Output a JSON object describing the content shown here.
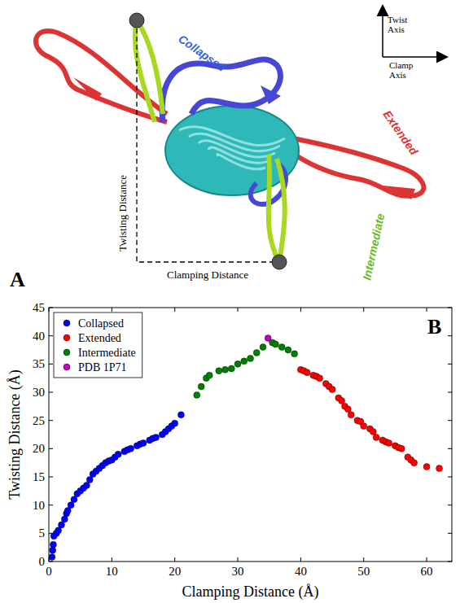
{
  "diagram": {
    "panel_label": "A",
    "labels": {
      "collapsed": "Collapsed",
      "extended": "Extended",
      "intermediate": "Intermediate",
      "twisting": "Twisting Distance",
      "clamping": "Clamping Distance"
    },
    "axes_key": {
      "twist": "Twist Axis",
      "clamp": "Clamp Axis"
    }
  },
  "chart_data": {
    "type": "scatter",
    "annotations": [
      "B"
    ],
    "x_label": "Clamping Distance (Å)",
    "y_label": "Twisting Distance (Å)",
    "xlim": [
      0,
      64
    ],
    "ylim": [
      0,
      45
    ],
    "xticks": [
      0,
      10,
      20,
      30,
      40,
      50,
      60
    ],
    "yticks": [
      0,
      5,
      10,
      15,
      20,
      25,
      30,
      35,
      40,
      45
    ],
    "legend": "upper left",
    "marker": "circle",
    "series": [
      {
        "name": "Collapsed",
        "color": "#0000ff",
        "x": [
          0.5,
          0.6,
          0.7,
          0.8,
          1.2,
          1.5,
          2,
          2.5,
          2.8,
          3,
          3.5,
          4,
          4.5,
          5,
          5.5,
          6,
          6.5,
          7,
          7.5,
          8,
          8.5,
          9,
          9.5,
          10,
          10.5,
          11,
          12,
          12.5,
          13,
          14,
          14.5,
          15,
          16,
          16.5,
          17,
          18,
          18.5,
          19,
          19.5,
          20,
          21
        ],
        "y": [
          0.8,
          2,
          3,
          4.5,
          5,
          5.5,
          6.5,
          7.5,
          8.5,
          9,
          10,
          11,
          12,
          12.5,
          13,
          13.5,
          14.5,
          15.5,
          16,
          16.5,
          17,
          17.5,
          17.8,
          18,
          18.5,
          19,
          19.5,
          19.8,
          20,
          20.5,
          20.8,
          21,
          21.5,
          21.8,
          22,
          22.5,
          23,
          23.5,
          24,
          24.5,
          26
        ]
      },
      {
        "name": "Extended",
        "color": "#ff0000",
        "x": [
          40,
          40.5,
          41,
          42,
          42.5,
          43,
          44,
          44.5,
          45,
          46,
          46.5,
          47,
          47.5,
          48,
          49,
          49.5,
          50,
          51,
          51.5,
          52,
          53,
          53.5,
          54,
          55,
          55.5,
          56,
          57,
          57.5,
          58,
          60,
          62
        ],
        "y": [
          34,
          33.8,
          33.5,
          33,
          32.8,
          32.5,
          31.5,
          31,
          30.5,
          29,
          28.5,
          27.5,
          27,
          26,
          25,
          24.8,
          24,
          23.5,
          23,
          22,
          21.5,
          21.2,
          21,
          20.5,
          20.2,
          20,
          18.5,
          18,
          17.5,
          16.8,
          16.5
        ]
      },
      {
        "name": "Intermediate",
        "color": "#008000",
        "x": [
          23.5,
          24.2,
          25,
          25.5,
          27,
          28,
          29,
          30,
          31,
          32,
          33,
          34,
          35.5,
          36,
          37,
          38,
          39
        ],
        "y": [
          29.5,
          31,
          32.5,
          33,
          33.8,
          34,
          34.2,
          35,
          35.5,
          36,
          37,
          38,
          38.8,
          38.5,
          38,
          37.5,
          36.8
        ]
      },
      {
        "name": "PDB 1P71",
        "color": "#bf00bf",
        "x": [
          34.8
        ],
        "y": [
          39.6
        ]
      }
    ]
  }
}
